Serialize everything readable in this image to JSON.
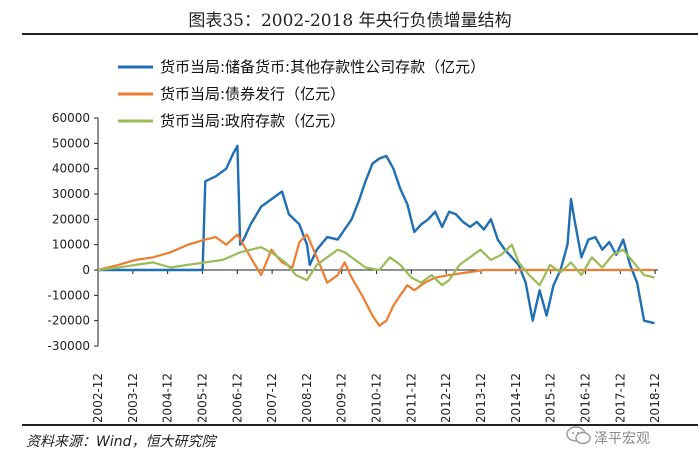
{
  "header": {
    "title": "图表35：2002-2018 年央行负债增量结构"
  },
  "footer": {
    "source": "资料来源：Wind，恒大研究院",
    "watermark": "泽平宏观"
  },
  "icons": {
    "watermark": "wechat-bubble-icon"
  },
  "colors": {
    "series1": "#1f6fb5",
    "series2": "#ed7d31",
    "series3": "#9bbb59",
    "axis": "#222222"
  },
  "chart_data": {
    "type": "line",
    "title": "图表35：2002-2018 年央行负债增量结构",
    "xlabel": "",
    "ylabel": "",
    "ylim": [
      -30000,
      60000
    ],
    "yticks": [
      60000,
      50000,
      40000,
      30000,
      20000,
      10000,
      0,
      -10000,
      -20000,
      -30000
    ],
    "yticklabels": [
      "60000",
      "50000",
      "40000",
      "30000",
      "20000",
      "10000",
      "0",
      "-10000",
      "-20000",
      "-30000"
    ],
    "xlim": [
      2002.917,
      2019.0
    ],
    "xticklabels": [
      "2002-12",
      "2003-12",
      "2004-12",
      "2005-12",
      "2006-12",
      "2007-12",
      "2008-12",
      "2009-12",
      "2010-12",
      "2011-12",
      "2012-12",
      "2013-12",
      "2014-12",
      "2015-12",
      "2016-12",
      "2017-12",
      "2018-12"
    ],
    "xticks": [
      2002.917,
      2003.917,
      2004.917,
      2005.917,
      2006.917,
      2007.917,
      2008.917,
      2009.917,
      2010.917,
      2011.917,
      2012.917,
      2013.917,
      2014.917,
      2015.917,
      2016.917,
      2017.917,
      2018.917
    ],
    "legend_position": "top-left",
    "series": [
      {
        "name": "货币当局:储备货币:其他存款性公司存款（亿元）",
        "x": [
          2002.92,
          2003.5,
          2004.5,
          2005.5,
          2005.92,
          2006.0,
          2006.3,
          2006.6,
          2006.8,
          2006.92,
          2007.0,
          2007.1,
          2007.3,
          2007.6,
          2007.9,
          2008.2,
          2008.4,
          2008.7,
          2008.92,
          2009.0,
          2009.2,
          2009.5,
          2009.8,
          2010.0,
          2010.2,
          2010.4,
          2010.6,
          2010.8,
          2011.0,
          2011.2,
          2011.4,
          2011.6,
          2011.8,
          2012.0,
          2012.2,
          2012.4,
          2012.6,
          2012.8,
          2013.0,
          2013.2,
          2013.4,
          2013.6,
          2013.8,
          2014.0,
          2014.2,
          2014.4,
          2014.6,
          2014.8,
          2015.0,
          2015.2,
          2015.4,
          2015.6,
          2015.8,
          2016.0,
          2016.2,
          2016.4,
          2016.5,
          2016.6,
          2016.8,
          2017.0,
          2017.2,
          2017.4,
          2017.6,
          2017.8,
          2018.0,
          2018.2,
          2018.4,
          2018.6,
          2018.9
        ],
        "values": [
          0,
          0,
          0,
          0,
          0,
          35000,
          37000,
          40000,
          46000,
          49000,
          10000,
          12000,
          18000,
          25000,
          28000,
          31000,
          22000,
          18000,
          10000,
          2000,
          8000,
          13000,
          12000,
          16000,
          20000,
          27000,
          35000,
          42000,
          44000,
          45000,
          40000,
          32000,
          26000,
          15000,
          18000,
          20000,
          23000,
          17000,
          23000,
          22000,
          19000,
          17000,
          19000,
          16000,
          20000,
          12000,
          8000,
          5000,
          2000,
          -5000,
          -20000,
          -8000,
          -18000,
          -6000,
          0,
          10000,
          28000,
          20000,
          5000,
          12000,
          13000,
          8000,
          11000,
          6000,
          12000,
          2000,
          -5000,
          -20000,
          -21000
        ]
      },
      {
        "name": "货币当局:债券发行（亿元）",
        "x": [
          2002.92,
          2003.5,
          2004.0,
          2004.5,
          2005.0,
          2005.5,
          2006.0,
          2006.3,
          2006.6,
          2006.92,
          2007.3,
          2007.6,
          2007.9,
          2008.2,
          2008.5,
          2008.7,
          2008.92,
          2009.2,
          2009.5,
          2009.8,
          2010.0,
          2010.2,
          2010.5,
          2010.8,
          2011.0,
          2011.2,
          2011.4,
          2011.6,
          2011.8,
          2012.0,
          2012.3,
          2012.6,
          2013.0,
          2013.5,
          2014.0,
          2014.3,
          2014.6,
          2015.0,
          2015.5,
          2016.0,
          2016.5,
          2017.0,
          2017.5,
          2018.0,
          2018.5,
          2018.9
        ],
        "values": [
          0,
          2000,
          4000,
          5000,
          7000,
          10000,
          12000,
          13000,
          10000,
          14000,
          5000,
          -2000,
          8000,
          3000,
          1000,
          11000,
          14000,
          5000,
          -5000,
          -2000,
          3000,
          -3000,
          -10000,
          -18000,
          -22000,
          -20000,
          -14000,
          -10000,
          -6000,
          -8000,
          -5000,
          -3000,
          -2000,
          -1000,
          0,
          0,
          0,
          0,
          0,
          0,
          0,
          0,
          0,
          0,
          0,
          0
        ]
      },
      {
        "name": "货币当局:政府存款（亿元）",
        "x": [
          2002.92,
          2003.5,
          2004.0,
          2004.5,
          2005.0,
          2005.5,
          2006.0,
          2006.5,
          2007.0,
          2007.3,
          2007.6,
          2008.0,
          2008.3,
          2008.6,
          2008.92,
          2009.2,
          2009.5,
          2009.8,
          2010.0,
          2010.3,
          2010.6,
          2011.0,
          2011.3,
          2011.6,
          2011.92,
          2012.2,
          2012.5,
          2012.8,
          2013.0,
          2013.3,
          2013.6,
          2013.9,
          2014.2,
          2014.5,
          2014.8,
          2015.0,
          2015.3,
          2015.6,
          2015.9,
          2016.2,
          2016.5,
          2016.8,
          2017.1,
          2017.4,
          2017.7,
          2018.0,
          2018.3,
          2018.6,
          2018.9
        ],
        "values": [
          0,
          1000,
          2000,
          3000,
          1000,
          2000,
          3000,
          4000,
          7000,
          8000,
          9000,
          6000,
          3000,
          -2000,
          -4000,
          2000,
          5000,
          8000,
          7000,
          4000,
          1000,
          0,
          5000,
          2000,
          -3000,
          -5000,
          -2000,
          -6000,
          -4000,
          2000,
          5000,
          8000,
          4000,
          6000,
          10000,
          3000,
          -2000,
          -6000,
          2000,
          -1000,
          3000,
          -2000,
          5000,
          1000,
          6000,
          8000,
          3000,
          -2000,
          -3000
        ]
      }
    ]
  }
}
